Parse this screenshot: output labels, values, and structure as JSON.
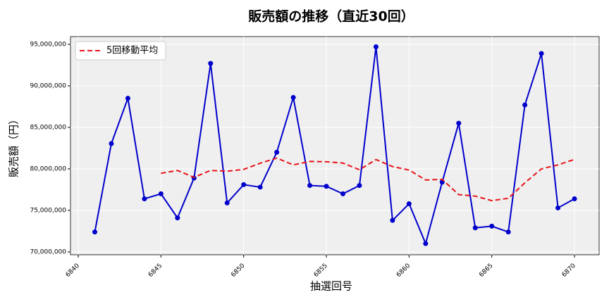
{
  "chart_data": {
    "type": "line",
    "title": "販売額の推移（直近30回）",
    "x_label": "抽選回号",
    "y_label": "販売額（円）",
    "x": [
      6841,
      6842,
      6843,
      6844,
      6845,
      6846,
      6847,
      6848,
      6849,
      6850,
      6851,
      6852,
      6853,
      6854,
      6855,
      6856,
      6857,
      6858,
      6859,
      6860,
      6861,
      6862,
      6863,
      6864,
      6865,
      6866,
      6867,
      6868,
      6869,
      6870
    ],
    "series": [
      {
        "name": "販売額",
        "color": "#0000cc",
        "marker": true,
        "dashed": false,
        "values": [
          72400000,
          83050000,
          88500000,
          76400000,
          77000000,
          74100000,
          78900000,
          92700000,
          75900000,
          78100000,
          77800000,
          82000000,
          88600000,
          78000000,
          77900000,
          77000000,
          78000000,
          94700000,
          73800000,
          75800000,
          71000000,
          78400000,
          85500000,
          72900000,
          73100000,
          72400000,
          87700000,
          93900000,
          75300000,
          76400000
        ]
      },
      {
        "name": "5回移動平均",
        "color": "#e8141a",
        "marker": false,
        "dashed": true,
        "values": [
          null,
          null,
          null,
          null,
          79470000,
          79810000,
          78980000,
          79820000,
          79720000,
          79940000,
          80680000,
          81300000,
          80480000,
          80900000,
          80860000,
          80700000,
          79900000,
          81120000,
          80280000,
          79860000,
          78660000,
          78740000,
          76900000,
          76720000,
          76180000,
          76460000,
          78320000,
          80000000,
          80480000,
          81140000
        ]
      }
    ],
    "xlim": [
      6839.53,
      6871.49
    ],
    "ylim": [
      69660000,
      95930000
    ],
    "xticks": [
      6840,
      6845,
      6850,
      6855,
      6860,
      6865,
      6870
    ],
    "yticks": [
      {
        "value": 70000000,
        "label": "70,000,000"
      },
      {
        "value": 75000000,
        "label": "75,000,000"
      },
      {
        "value": 80000000,
        "label": "80,000,000"
      },
      {
        "value": 85000000,
        "label": "85,000,000"
      },
      {
        "value": 90000000,
        "label": "90,000,000"
      },
      {
        "value": 95000000,
        "label": "95,000,000"
      }
    ],
    "grid": true,
    "legend": "upper-left"
  }
}
